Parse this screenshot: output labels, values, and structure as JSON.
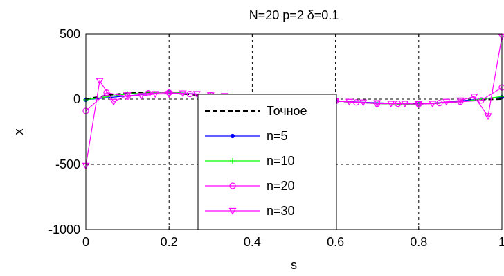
{
  "chart_data": {
    "type": "line",
    "title": "N=20  p=2  δ=0.1",
    "xlabel": "s",
    "ylabel": "x",
    "xlim": [
      0,
      1
    ],
    "ylim": [
      -1000,
      500
    ],
    "xticks": [
      0,
      0.2,
      0.4,
      0.6,
      0.8,
      1
    ],
    "xtick_labels": [
      "0",
      "0.2",
      "0.4",
      "0.6",
      "0.8",
      "1"
    ],
    "yticks": [
      -1000,
      -500,
      0,
      500
    ],
    "ytick_labels": [
      "-1000",
      "-500",
      "0",
      "500"
    ],
    "grid": true,
    "legend_position": "center",
    "series": [
      {
        "name": "Точное",
        "color": "#000000",
        "dash": true,
        "marker": "none",
        "x": [
          0,
          0.05,
          0.1,
          0.15,
          0.2,
          0.25,
          0.3,
          0.35,
          0.4,
          0.45,
          0.5,
          0.55,
          0.6,
          0.65,
          0.7,
          0.75,
          0.8,
          0.85,
          0.9,
          0.95,
          1
        ],
        "y": [
          0,
          29,
          48,
          55,
          48,
          36,
          24,
          12,
          4,
          0,
          0,
          -3,
          -14,
          -24,
          -32,
          -36,
          -36,
          -30,
          -18,
          -4,
          0
        ]
      },
      {
        "name": "n=5",
        "color": "#0000ff",
        "marker": "dot",
        "x": [
          0,
          0.2,
          0.4,
          0.6,
          0.8,
          1
        ],
        "y": [
          -5,
          55,
          10,
          -15,
          -40,
          15
        ]
      },
      {
        "name": "n=10",
        "color": "#00ff00",
        "marker": "plus",
        "x": [
          0,
          0.1,
          0.2,
          0.3,
          0.4,
          0.5,
          0.6,
          0.7,
          0.8,
          0.9,
          1
        ],
        "y": [
          -5,
          40,
          55,
          30,
          5,
          0,
          -15,
          -35,
          -40,
          -20,
          20
        ]
      },
      {
        "name": "n=20",
        "color": "#ff00ff",
        "marker": "circle",
        "x": [
          0,
          0.05,
          0.1,
          0.15,
          0.2,
          0.25,
          0.3,
          0.35,
          0.4,
          0.45,
          0.5,
          0.55,
          0.6,
          0.65,
          0.7,
          0.75,
          0.8,
          0.85,
          0.9,
          0.95,
          1
        ],
        "y": [
          -90,
          50,
          20,
          45,
          50,
          40,
          30,
          10,
          5,
          0,
          0,
          -10,
          -15,
          -25,
          -35,
          -35,
          -38,
          -30,
          -20,
          -10,
          90
        ]
      },
      {
        "name": "n=30",
        "color": "#ff00ff",
        "marker": "triangle-down",
        "x": [
          0,
          0.0333,
          0.0667,
          0.1,
          0.1333,
          0.1667,
          0.2,
          0.2333,
          0.2667,
          0.3,
          0.3333,
          0.3667,
          0.4,
          0.4333,
          0.4667,
          0.5,
          0.5333,
          0.5667,
          0.6,
          0.6333,
          0.6667,
          0.7,
          0.7333,
          0.7667,
          0.8,
          0.8333,
          0.8667,
          0.9,
          0.9333,
          0.9667,
          1
        ],
        "y": [
          -510,
          140,
          -20,
          30,
          25,
          40,
          40,
          45,
          40,
          30,
          25,
          15,
          10,
          5,
          0,
          0,
          -5,
          -10,
          -15,
          -20,
          -25,
          -30,
          -35,
          -35,
          -38,
          -35,
          -20,
          -10,
          20,
          -130,
          480
        ]
      }
    ]
  }
}
